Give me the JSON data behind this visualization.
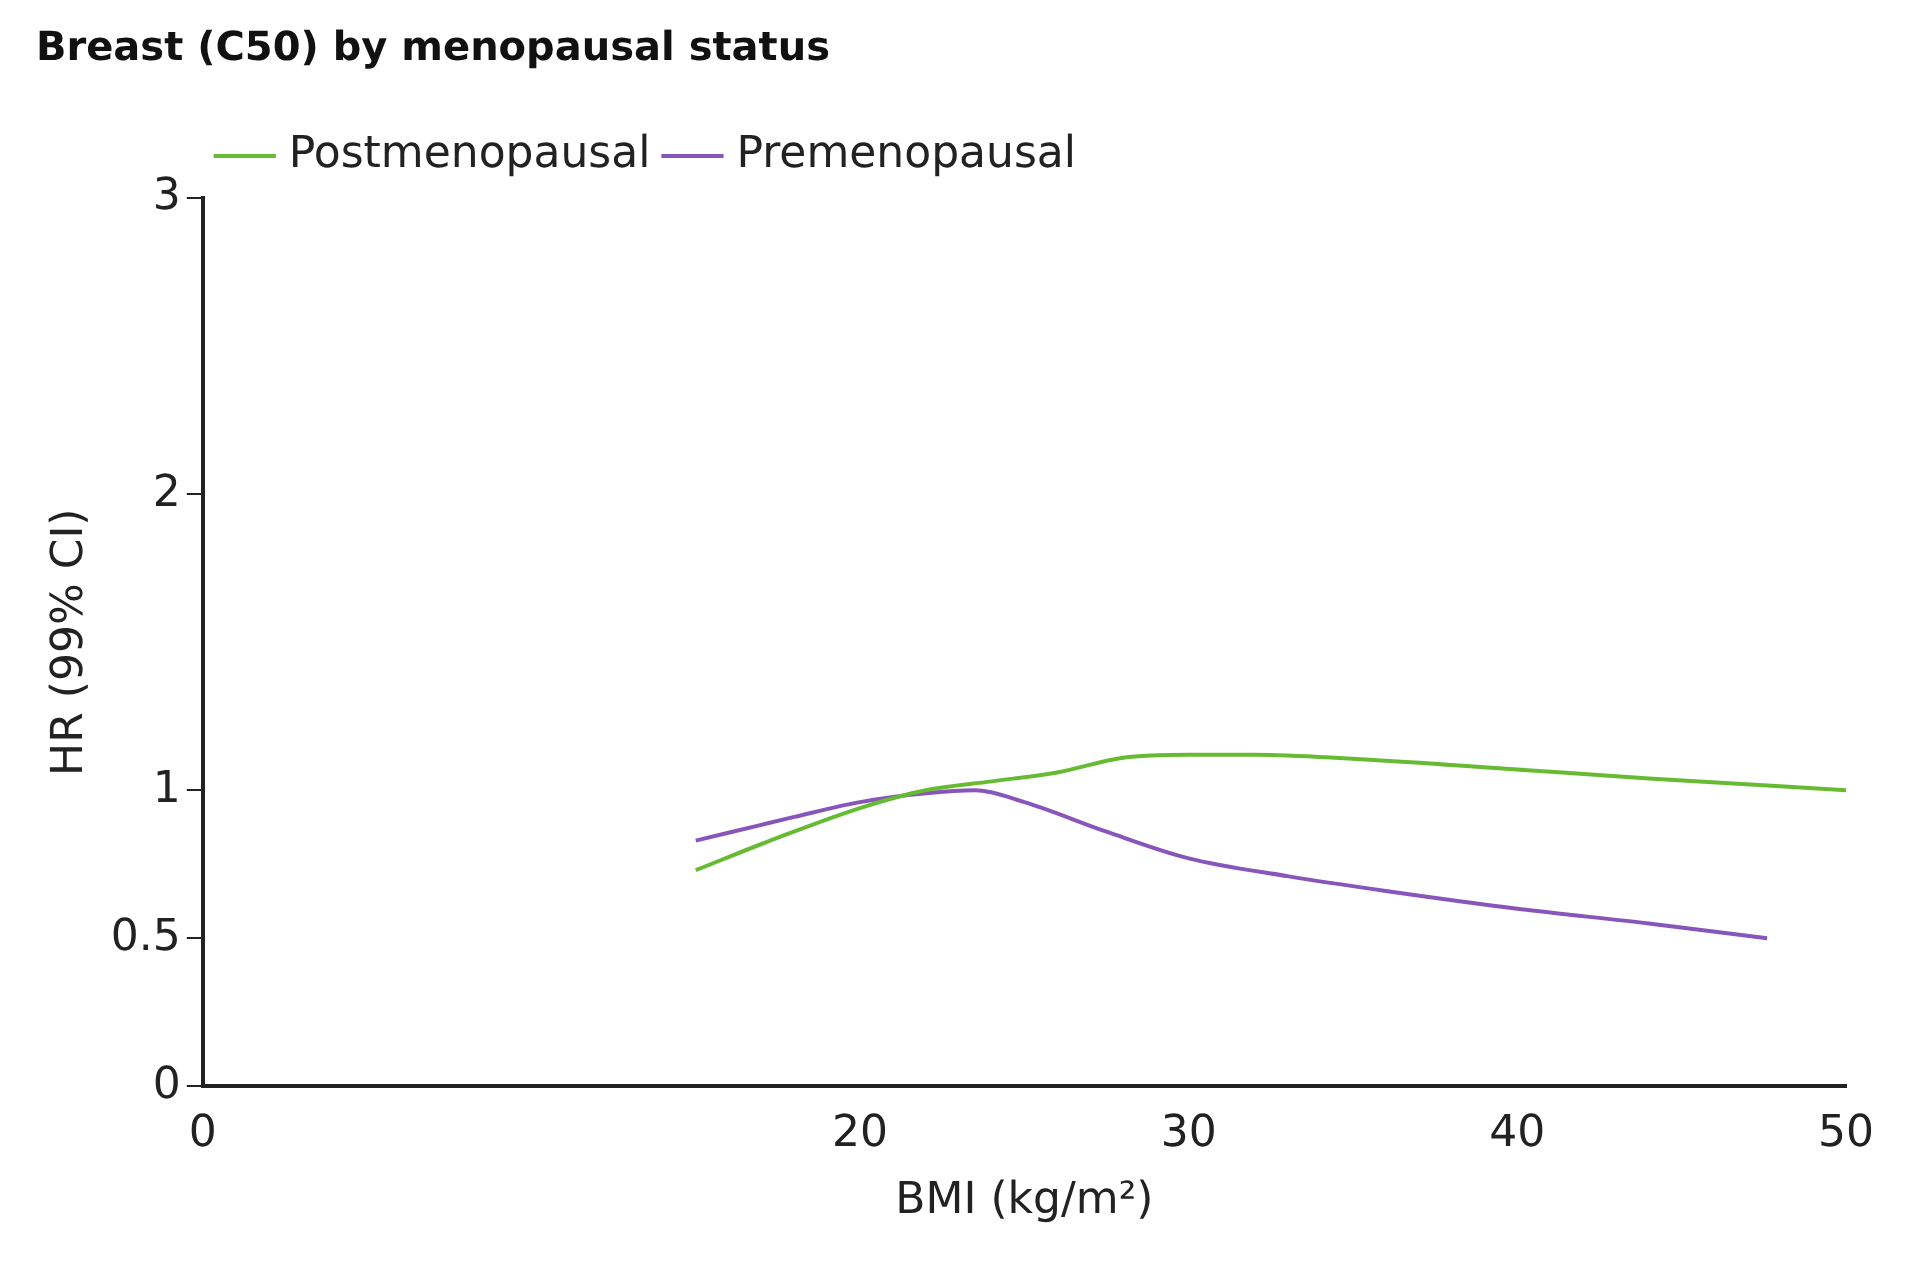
{
  "chart_data": {
    "type": "line",
    "title": "Breast (C50) by menopausal status",
    "xlabel": "BMI (kg/m²)",
    "ylabel": "HR (99% CI)",
    "xlim": [
      0,
      50
    ],
    "xticks": [
      0,
      20,
      30,
      40,
      50
    ],
    "ylim": [
      0,
      3
    ],
    "yticks": [
      0,
      0.5,
      1,
      2,
      3
    ],
    "legend": "top left",
    "grid": false,
    "marker": "none",
    "series": [
      {
        "name": "Postmenopausal",
        "color": "#66bb33",
        "x": [
          15,
          17.5,
          20,
          22,
          24,
          26,
          28,
          30,
          32,
          36,
          40,
          44,
          50
        ],
        "values": [
          0.73,
          0.84,
          0.94,
          1.0,
          1.03,
          1.06,
          1.11,
          1.12,
          1.12,
          1.1,
          1.07,
          1.04,
          1.0
        ]
      },
      {
        "name": "Premenopausal",
        "color": "#8855bb",
        "x": [
          15,
          18,
          20,
          22,
          23.5,
          25,
          27.5,
          30,
          33,
          36,
          40,
          44,
          47.6
        ],
        "values": [
          0.83,
          0.91,
          0.96,
          0.99,
          1.0,
          0.96,
          0.86,
          0.77,
          0.71,
          0.66,
          0.6,
          0.55,
          0.5
        ]
      }
    ]
  }
}
